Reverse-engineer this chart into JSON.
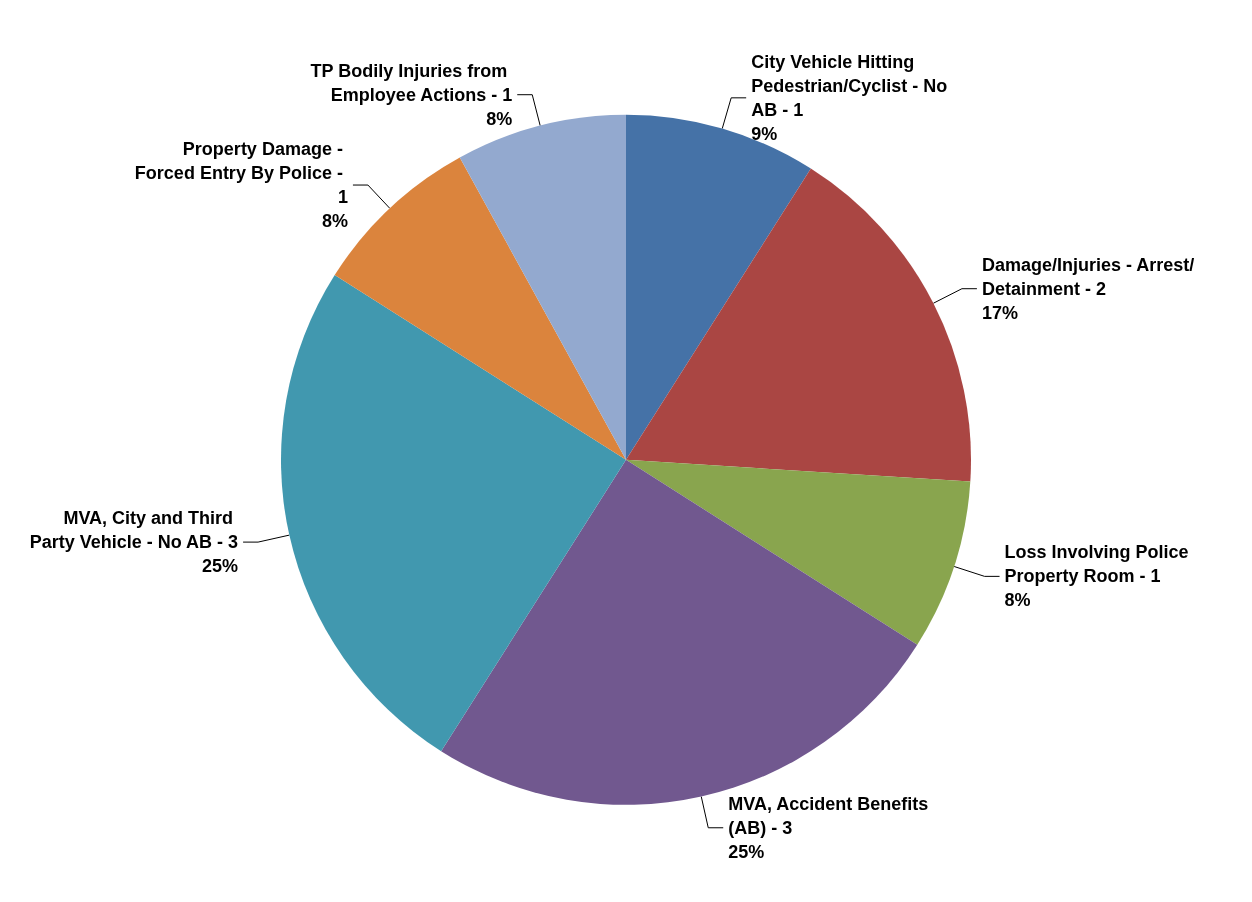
{
  "chart_data": {
    "type": "pie",
    "categories": [
      "City Vehicle Hitting Pedestrian/Cyclist - No AB - 1",
      "Damage/Injuries - Arrest/Detainment - 2",
      "Loss Involving Police Property Room - 1",
      "MVA, Accident Benefits (AB) - 3",
      "MVA, City and Third Party Vehicle - No AB - 3",
      "Property Damage - Forced Entry By Police - 1",
      "TP Bodily Injuries from Employee Actions - 1"
    ],
    "values": [
      9,
      17,
      8,
      25,
      25,
      8,
      8
    ],
    "value_labels": [
      "9%",
      "17%",
      "8%",
      "25%",
      "25%",
      "8%",
      "8%"
    ],
    "colors": [
      "#4572a7",
      "#aa4643",
      "#89a54e",
      "#71588f",
      "#4198af",
      "#db843d",
      "#93a9cf"
    ],
    "legend": false
  }
}
